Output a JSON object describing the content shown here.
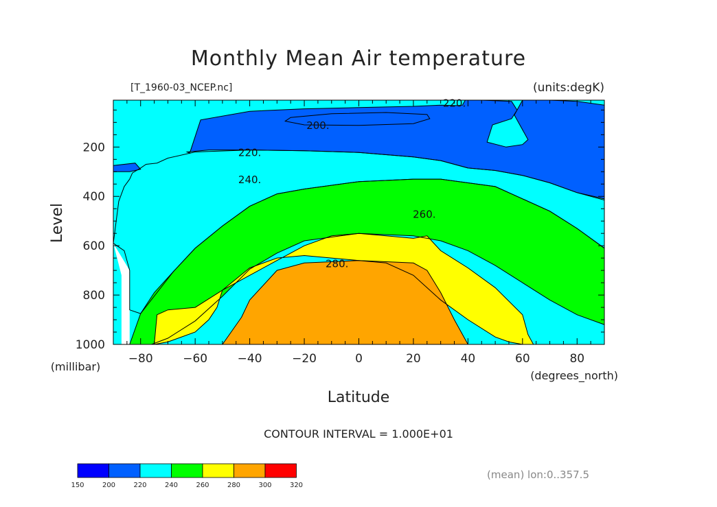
{
  "chart_data": {
    "type": "contour",
    "title": "Monthly Mean Air temperature",
    "source_label": "[T_1960-03_NCEP.nc]",
    "units_label": "(units:degK)",
    "xlabel": "Latitude",
    "x_units": "(degrees_north)",
    "ylabel": "Level",
    "y_units": "(millibar)",
    "xlim": [
      -90,
      90
    ],
    "ylim": [
      1000,
      10
    ],
    "x_ticks": [
      -80,
      -60,
      -40,
      -20,
      0,
      20,
      40,
      60,
      80
    ],
    "x_tick_labels": [
      "−80",
      "−60",
      "−40",
      "−20",
      "0",
      "20",
      "40",
      "60",
      "80"
    ],
    "y_ticks": [
      200,
      400,
      600,
      800,
      1000
    ],
    "y_tick_labels": [
      "200",
      "400",
      "600",
      "800",
      "1000"
    ],
    "contour_interval_text": "CONTOUR INTERVAL = 1.000E+01",
    "averaging_note": "(mean) lon:0..357.5",
    "contour_labels": [
      {
        "text": "200.",
        "lat": -15,
        "level": 110
      },
      {
        "text": "220.",
        "lat": -40,
        "level": 220
      },
      {
        "text": "220.",
        "lat": 35,
        "level": 20
      },
      {
        "text": "240.",
        "lat": -40,
        "level": 330
      },
      {
        "text": "260.",
        "lat": 24,
        "level": 470
      },
      {
        "text": "280.",
        "lat": -8,
        "level": 670
      }
    ],
    "colorbar": {
      "levels": [
        150,
        200,
        220,
        240,
        260,
        280,
        300,
        320
      ],
      "labels": [
        "150",
        "200",
        "220",
        "240",
        "260",
        "280",
        "300",
        "320"
      ],
      "colors": [
        "#0000ff",
        "#0060ff",
        "#00ffff",
        "#00ff00",
        "#ffff00",
        "#ffa500",
        "#ff0000"
      ]
    },
    "fill_regions": [
      {
        "name": "below-200",
        "color": "#0000ff",
        "lat": [
          -27,
          -25,
          -10,
          10,
          25,
          26,
          20,
          0,
          -20,
          -27
        ],
        "level": [
          95,
          80,
          65,
          60,
          68,
          85,
          105,
          112,
          110,
          95
        ]
      },
      {
        "name": "200-220-main",
        "color": "#0060ff",
        "lat": [
          -62,
          -58,
          -40,
          -20,
          0,
          20,
          30,
          36,
          38,
          39,
          45,
          56,
          58,
          56,
          49,
          47,
          54,
          60,
          62,
          57,
          60,
          70,
          80,
          90,
          90,
          80,
          70,
          60,
          50,
          40,
          30,
          20,
          0,
          -20,
          -40,
          -55,
          -63,
          -62
        ],
        "level": [
          225,
          90,
          55,
          45,
          40,
          35,
          30,
          32,
          30,
          10,
          10,
          15,
          50,
          85,
          110,
          180,
          200,
          190,
          170,
          70,
          10,
          10,
          15,
          30,
          410,
          385,
          345,
          315,
          295,
          285,
          255,
          240,
          222,
          215,
          212,
          212,
          220,
          225
        ]
      },
      {
        "name": "200-220-patch",
        "color": "#0060ff",
        "lat": [
          -90,
          -82,
          -80,
          -84,
          -90
        ],
        "level": [
          275,
          265,
          290,
          300,
          300
        ]
      },
      {
        "name": "220-240",
        "color": "#00ffff",
        "lat": [
          -90,
          -90,
          -86,
          -84,
          -84,
          -80,
          -68,
          -60,
          -50,
          -40,
          -30,
          -20,
          0,
          20,
          30,
          40,
          50,
          60,
          70,
          80,
          90,
          90,
          80,
          70,
          60,
          50,
          40,
          30,
          20,
          0,
          -20,
          -40,
          -60,
          -70,
          -74,
          -78,
          -80,
          -83,
          -84,
          -86,
          -88,
          -90
        ],
        "level": [
          10,
          590,
          620,
          700,
          860,
          875,
          705,
          610,
          520,
          440,
          390,
          370,
          340,
          330,
          330,
          345,
          360,
          410,
          460,
          530,
          610,
          415,
          385,
          345,
          315,
          295,
          285,
          255,
          240,
          222,
          215,
          212,
          220,
          245,
          265,
          270,
          285,
          305,
          330,
          360,
          420,
          590
        ]
      },
      {
        "name": "240-260",
        "color": "#00ff00",
        "lat": [
          -84,
          -80,
          -78,
          -76,
          -70,
          -60,
          -50,
          -40,
          -30,
          -20,
          0,
          20,
          30,
          40,
          50,
          60,
          70,
          80,
          90,
          90,
          80,
          70,
          60,
          50,
          40,
          30,
          20,
          0,
          -20,
          -30,
          -40,
          -50,
          -60,
          -68,
          -75,
          -80,
          -84
        ],
        "level": [
          1000,
          1000,
          1000,
          1000,
          975,
          905,
          805,
          695,
          630,
          580,
          550,
          560,
          580,
          620,
          680,
          750,
          820,
          880,
          920,
          610,
          530,
          460,
          410,
          360,
          345,
          330,
          330,
          340,
          370,
          390,
          440,
          520,
          610,
          705,
          790,
          875,
          1000
        ]
      },
      {
        "name": "260-280",
        "color": "#ffff00",
        "lat": [
          -75,
          -74,
          -70,
          -60,
          -50,
          -40,
          -30,
          -20,
          -10,
          0,
          10,
          20,
          25,
          30,
          40,
          50,
          60,
          62,
          64,
          60,
          55,
          50,
          40,
          30,
          20,
          10,
          0,
          -10,
          -20,
          -30,
          -40,
          -50,
          -52,
          -55,
          -60,
          -70,
          -75
        ],
        "level": [
          1000,
          880,
          860,
          850,
          780,
          720,
          660,
          600,
          560,
          550,
          560,
          570,
          560,
          620,
          690,
          770,
          880,
          960,
          1000,
          1000,
          990,
          970,
          900,
          820,
          720,
          670,
          660,
          650,
          640,
          650,
          690,
          780,
          850,
          900,
          950,
          990,
          1000
        ]
      },
      {
        "name": "above-280",
        "color": "#ffa500",
        "lat": [
          -50,
          -43,
          -40,
          -30,
          -20,
          -10,
          0,
          10,
          20,
          25,
          30,
          35,
          40,
          35,
          30,
          20,
          10,
          0,
          -10,
          -20,
          -30,
          -35,
          -40,
          -50
        ],
        "level": [
          1000,
          890,
          820,
          700,
          670,
          665,
          660,
          665,
          670,
          700,
          790,
          900,
          1000,
          1000,
          1000,
          1000,
          1000,
          1000,
          1000,
          1000,
          1000,
          1000,
          1000,
          1000
        ]
      }
    ],
    "masked_regions": [
      {
        "name": "missing-data",
        "lat": [
          -90,
          -84,
          -84,
          -87,
          -87,
          -90
        ],
        "level": [
          590,
          700,
          1000,
          1000,
          720,
          590
        ]
      }
    ]
  }
}
